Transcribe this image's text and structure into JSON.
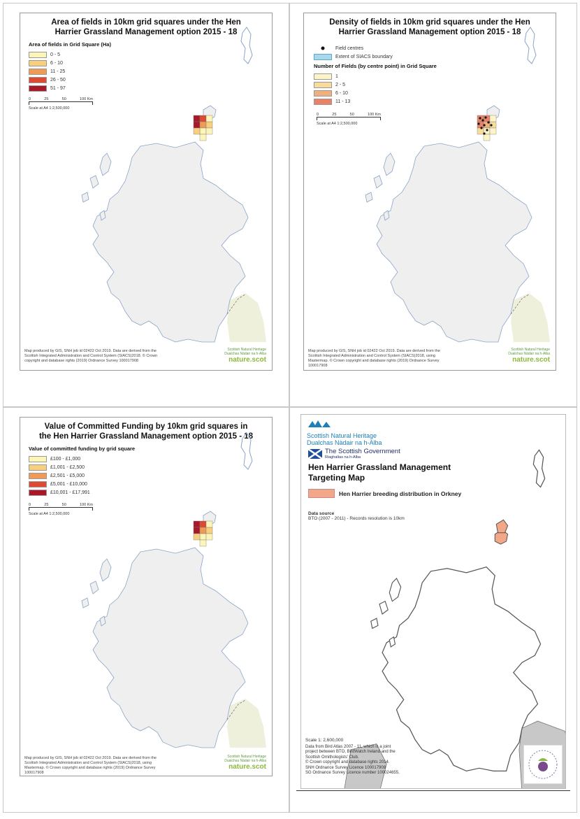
{
  "panels": {
    "area": {
      "title_line1": "Area of fields in 10km grid squares under the Hen",
      "title_line2": "Harrier Grassland Management option 2015 - 18",
      "legend_title": "Area of fields in Grid Square (Ha)",
      "legend_items": [
        {
          "label": "0 - 5",
          "color": "#fdf5b8"
        },
        {
          "label": "6 - 10",
          "color": "#f7cf7f"
        },
        {
          "label": "11 - 25",
          "color": "#ef9a55"
        },
        {
          "label": "26 - 50",
          "color": "#dd4a30"
        },
        {
          "label": "51 - 97",
          "color": "#a8182a"
        }
      ],
      "scale_ticks": [
        "0",
        "25",
        "50",
        "100 Km"
      ],
      "scale_note": "Scale at A4 1:2,500,000",
      "credit": "Map produced by GIS, SNH job id 02422 Oct 2019. Data are derived from the Scottish Integrated Administration and Control System (SIACS)2018. © Crown copyright and database rights (2019) Ordnance Survey 100017908",
      "brand_small1": "Scottish Natural Heritage",
      "brand_small2": "Dualchas Nàdair na h-Alba",
      "brand_big": "nature.scot"
    },
    "density": {
      "title_line1": "Density of fields in 10km grid squares under the Hen",
      "title_line2": "Harrier Grassland Management option 2015 - 18",
      "field_centres_label": "Field centres",
      "siacs_label": "Extent of SIACS boundary",
      "legend_title": "Number of Fields (by centre point) in Grid Square",
      "legend_items": [
        {
          "label": "1",
          "color": "#fdf5c8"
        },
        {
          "label": "2 - 5",
          "color": "#f7dc9a"
        },
        {
          "label": "6 - 10",
          "color": "#f0b07e"
        },
        {
          "label": "11 - 13",
          "color": "#e98268"
        }
      ],
      "scale_ticks": [
        "0",
        "25",
        "50",
        "100 Km"
      ],
      "scale_note": "Scale at A4 1:2,500,000",
      "credit": "Map produced by GIS, SNH job id 02422 Oct 2019. Data are derived from the Scottish Integrated Administration and Control System (SIACS)2018, using Mastermap. © Crown copyright and database rights (2019) Ordnance Survey 100017908",
      "brand_small1": "Scottish Natural Heritage",
      "brand_small2": "Dualchas Nàdair na h-Alba",
      "brand_big": "nature.scot"
    },
    "funding": {
      "title_line1": "Value of Committed Funding by 10km grid squares in",
      "title_line2": "the Hen Harrier Grassland Management option 2015 - 18",
      "legend_title": "Value of committed funding by grid square",
      "legend_items": [
        {
          "label": "£100 - £1,000",
          "color": "#fdf5b8"
        },
        {
          "label": "£1,001 - £2,500",
          "color": "#f7cf7f"
        },
        {
          "label": "£2,501 - £5,000",
          "color": "#ef9a55"
        },
        {
          "label": "£5,001 - £10,000",
          "color": "#dd4a30"
        },
        {
          "label": "£10,001 - £17,991",
          "color": "#a8182a"
        }
      ],
      "scale_ticks": [
        "0",
        "25",
        "50",
        "100 Km"
      ],
      "scale_note": "Scale at A4 1:2,500,000",
      "credit": "Map produced by GIS, SNH job id 02422 Oct 2019. Data are derived from the Scottish Integrated Administration and Control System (SIACS)2018, using Mastermap. © Crown copyright and database rights (2019) Ordnance Survey 100017908",
      "brand_small1": "Scottish Natural Heritage",
      "brand_small2": "Dualchas Nàdair na h-Alba",
      "brand_big": "nature.scot"
    },
    "targeting": {
      "snh_line1": "Scottish Natural Heritage",
      "snh_line2": "Dualchas Nàdair na h-Alba",
      "gov_line1": "The Scottish Government",
      "gov_line2": "Riaghaltas na h-Alba",
      "title_line1": "Hen Harrier Grassland Management",
      "title_line2": "Targeting Map",
      "legend_label": "Hen Harrier breeding distribution in Orkney",
      "legend_color": "#f2a888",
      "data_source_title": "Data source",
      "data_source_text": "BTO (2007 - 2011) - Records resolution is 10km",
      "scale_text": "Scale   1: 2,600,000",
      "credit_lines": [
        "Data from Bird Atlas 2007 - 11, which is a joint",
        "project between BTO, BirdWatch Ireland and the",
        "Scottish Ornithologists' Club.",
        "© Crown copyright and database rights 2014.",
        "SNH Ordnance Survey Licence 100017908",
        "SG Ordnance Survey Licence number 100024655."
      ]
    }
  },
  "colors": {
    "land": "#efefef",
    "coast": "#8aa4c8",
    "england": "#eef0dc",
    "q4_outline": "#555555",
    "q4_england": "#c8c8c8"
  }
}
